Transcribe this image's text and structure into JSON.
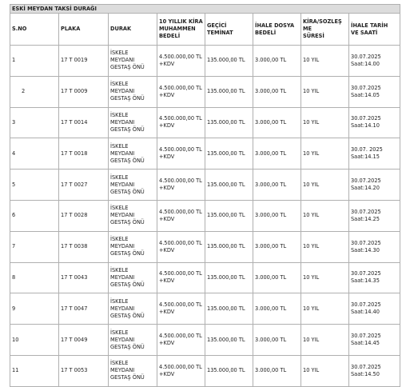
{
  "table": {
    "title": "ESKİ MEYDAN TAKSİ DURAĞI",
    "headers": [
      [
        "S.NO"
      ],
      [
        "PLAKA"
      ],
      [
        "DURAK"
      ],
      [
        "10 YILLIK KİRA",
        "MUHAMMEN",
        "BEDELİ"
      ],
      [
        "GEÇİCİ",
        "TEMİNAT"
      ],
      [
        "İHALE DOSYA",
        "BEDELİ"
      ],
      [
        "KİRA/SOZLEŞ",
        "ME",
        "SÜRESİ"
      ],
      [
        "İHALE TARİH",
        "VE SAATİ"
      ]
    ],
    "rows": [
      [
        [
          "1"
        ],
        [
          "17 T 0019"
        ],
        [
          "İSKELE",
          "MEYDANI",
          "GESTAŞ ÖNÜ"
        ],
        [
          "4.500.000,00 TL",
          "+KDV"
        ],
        [
          "135.000,00 TL"
        ],
        [
          "3.000,00 TL"
        ],
        [
          "10 YIL"
        ],
        [
          "30.07.2025",
          "Saat:14.00"
        ]
      ],
      [
        [
          "2"
        ],
        [
          "17 T 0009"
        ],
        [
          "İSKELE",
          "MEYDANI",
          "GESTAŞ ÖNÜ"
        ],
        [
          "4.500.000,00 TL",
          "+KDV"
        ],
        [
          "135.000,00 TL"
        ],
        [
          "3.000,00 TL"
        ],
        [
          "10 YIL"
        ],
        [
          "30.07.2025",
          "Saat:14.05"
        ]
      ],
      [
        [
          "3"
        ],
        [
          "17 T 0014"
        ],
        [
          "İSKELE",
          "MEYDANI",
          "GESTAŞ ÖNÜ"
        ],
        [
          "4.500.000,00 TL",
          "+KDV"
        ],
        [
          "135.000,00 TL"
        ],
        [
          "3.000,00 TL"
        ],
        [
          "10 YIL"
        ],
        [
          "30.07.2025",
          "Saat:14.10"
        ]
      ],
      [
        [
          "4"
        ],
        [
          "17 T 0018"
        ],
        [
          "İSKELE",
          "MEYDANI",
          "GESTAŞ ÖNÜ"
        ],
        [
          "4.500.000,00 TL",
          "+KDV"
        ],
        [
          "135.000,00 TL"
        ],
        [
          "3.000,00 TL"
        ],
        [
          "10 YIL"
        ],
        [
          "30.07. 2025",
          "Saat:14.15"
        ]
      ],
      [
        [
          "5"
        ],
        [
          "17 T 0027"
        ],
        [
          "İSKELE",
          "MEYDANI",
          "GESTAŞ ÖNÜ"
        ],
        [
          "4.500.000,00 TL",
          "+KDV"
        ],
        [
          "135.000,00 TL"
        ],
        [
          "3.000,00 TL"
        ],
        [
          "10 YIL"
        ],
        [
          "30.07.2025",
          "Saat:14.20"
        ]
      ],
      [
        [
          "6"
        ],
        [
          "17 T 0028"
        ],
        [
          "İSKELE",
          "MEYDANI",
          "GESTAŞ ÖNÜ"
        ],
        [
          "4.500.000,00 TL",
          "+KDV"
        ],
        [
          "135.000,00 TL"
        ],
        [
          "3.000,00 TL"
        ],
        [
          "10 YIL"
        ],
        [
          "30.07.2025",
          "Saat:14.25"
        ]
      ],
      [
        [
          "7"
        ],
        [
          "17 T 0038"
        ],
        [
          "İSKELE",
          "MEYDANI",
          "GESTAŞ ÖNÜ"
        ],
        [
          "4.500.000,00 TL",
          "+KDV"
        ],
        [
          "135.000,00 TL"
        ],
        [
          "3.000,00 TL"
        ],
        [
          "10 YIL"
        ],
        [
          "30.07.2025",
          "Saat:14.30"
        ]
      ],
      [
        [
          "8"
        ],
        [
          "17 T 0043"
        ],
        [
          "İSKELE",
          "MEYDANI",
          "GESTAŞ ÖNÜ"
        ],
        [
          "4.500.000,00 TL",
          "+KDV"
        ],
        [
          "135.000,00 TL"
        ],
        [
          "3.000,00 TL"
        ],
        [
          "10 YIL"
        ],
        [
          "30.07.2025",
          "Saat:14.35"
        ]
      ],
      [
        [
          "9"
        ],
        [
          "17 T 0047"
        ],
        [
          "İSKELE",
          "MEYDANI",
          "GESTAŞ ÖNÜ"
        ],
        [
          "4.500.000,00 TL",
          "+KDV"
        ],
        [
          "135.000,00 TL"
        ],
        [
          "3.000,00 TL"
        ],
        [
          "10 YIL"
        ],
        [
          "30.07.2025",
          "Saat:14.40"
        ]
      ],
      [
        [
          "10"
        ],
        [
          "17 T 0049"
        ],
        [
          "İSKELE",
          "MEYDANI",
          "GESTAŞ ÖNÜ"
        ],
        [
          "4.500.000,00 TL",
          "+KDV"
        ],
        [
          "135.000,00 TL"
        ],
        [
          "3.000,00 TL"
        ],
        [
          "10 YIL"
        ],
        [
          "30.07.2025",
          "Saat:14.45"
        ]
      ],
      [
        [
          "11"
        ],
        [
          "17 T 0053"
        ],
        [
          "İSKELE",
          "MEYDANI",
          "GESTAŞ ÖNÜ"
        ],
        [
          "4.500.000,00 TL",
          "+KDV"
        ],
        [
          "135.000,00 TL"
        ],
        [
          "3.000,00 TL"
        ],
        [
          "10 YIL"
        ],
        [
          "30.07.2025",
          "Saat:14.50"
        ]
      ]
    ]
  }
}
